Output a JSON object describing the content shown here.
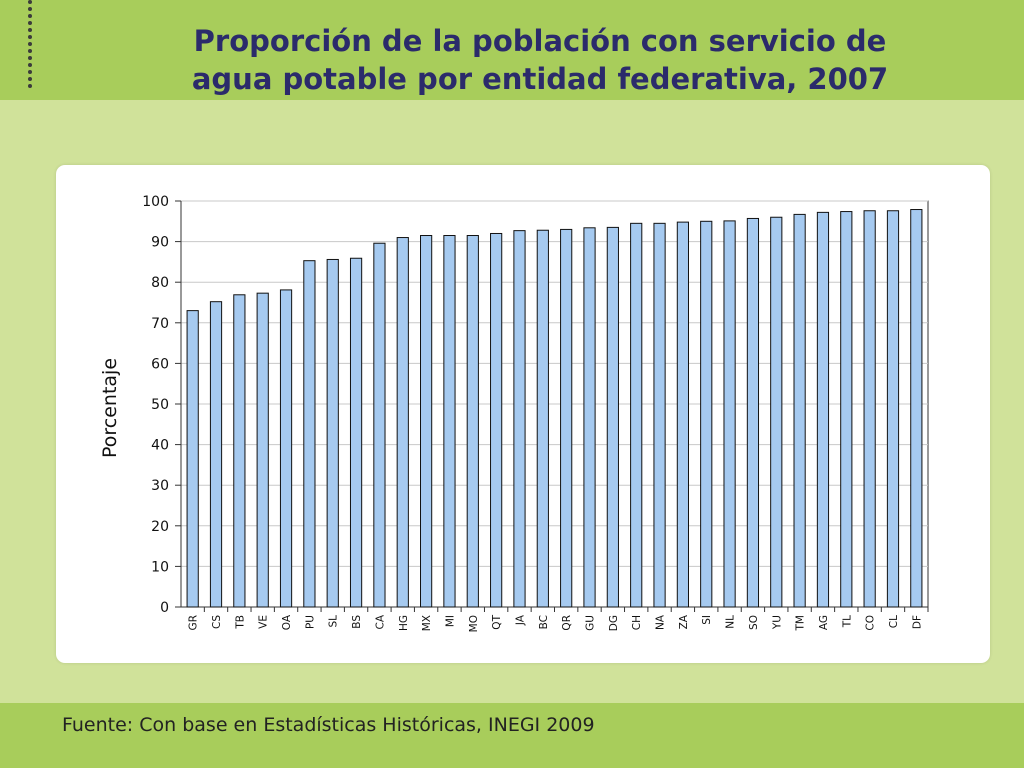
{
  "slide": {
    "title_line1": "Proporción de la población con servicio de",
    "title_line2": "agua potable por entidad federativa, 2007",
    "footer": "Fuente: Con base en Estadísticas Históricas, INEGI 2009"
  },
  "colors": {
    "background": "#d0e29a",
    "band": "#a8cd5b",
    "title": "#2b2b6b",
    "bar_fill": "#a6caf0",
    "bar_stroke": "#111111"
  },
  "chart_data": {
    "type": "bar",
    "title": "",
    "xlabel": "",
    "ylabel": "Porcentaje",
    "ylim": [
      0,
      100
    ],
    "yticks": [
      0,
      10,
      20,
      30,
      40,
      50,
      60,
      70,
      80,
      90,
      100
    ],
    "grid": true,
    "categories": [
      "GR",
      "CS",
      "TB",
      "VE",
      "OA",
      "PU",
      "SL",
      "BS",
      "CA",
      "HG",
      "MX",
      "MI",
      "MO",
      "QT",
      "JA",
      "BC",
      "QR",
      "GU",
      "DG",
      "CH",
      "NA",
      "ZA",
      "SI",
      "NL",
      "SO",
      "YU",
      "TM",
      "AG",
      "TL",
      "CO",
      "CL",
      "DF"
    ],
    "values": [
      73.0,
      75.2,
      76.9,
      77.3,
      78.1,
      85.3,
      85.6,
      85.9,
      89.6,
      91.0,
      91.5,
      91.5,
      91.5,
      92.0,
      92.7,
      92.8,
      93.0,
      93.4,
      93.5,
      94.5,
      94.5,
      94.8,
      95.0,
      95.1,
      95.7,
      96.0,
      96.7,
      97.2,
      97.4,
      97.6,
      97.6,
      97.9
    ]
  }
}
